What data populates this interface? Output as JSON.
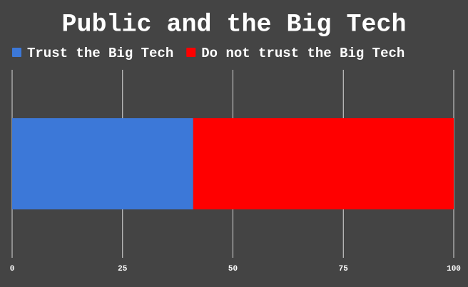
{
  "chart_data": {
    "type": "bar",
    "orientation": "horizontal",
    "stacked": true,
    "title": "Public and the Big Tech",
    "categories": [
      null
    ],
    "series": [
      {
        "name": "Trust the Big Tech",
        "color": "#3c78d8",
        "values": [
          41
        ]
      },
      {
        "name": "Do not trust the Big Tech",
        "color": "#ff0000",
        "values": [
          59
        ]
      }
    ],
    "xlim": [
      0,
      100
    ],
    "xticks": [
      0,
      25,
      50,
      75,
      100
    ],
    "grid": true,
    "legend": "top"
  }
}
